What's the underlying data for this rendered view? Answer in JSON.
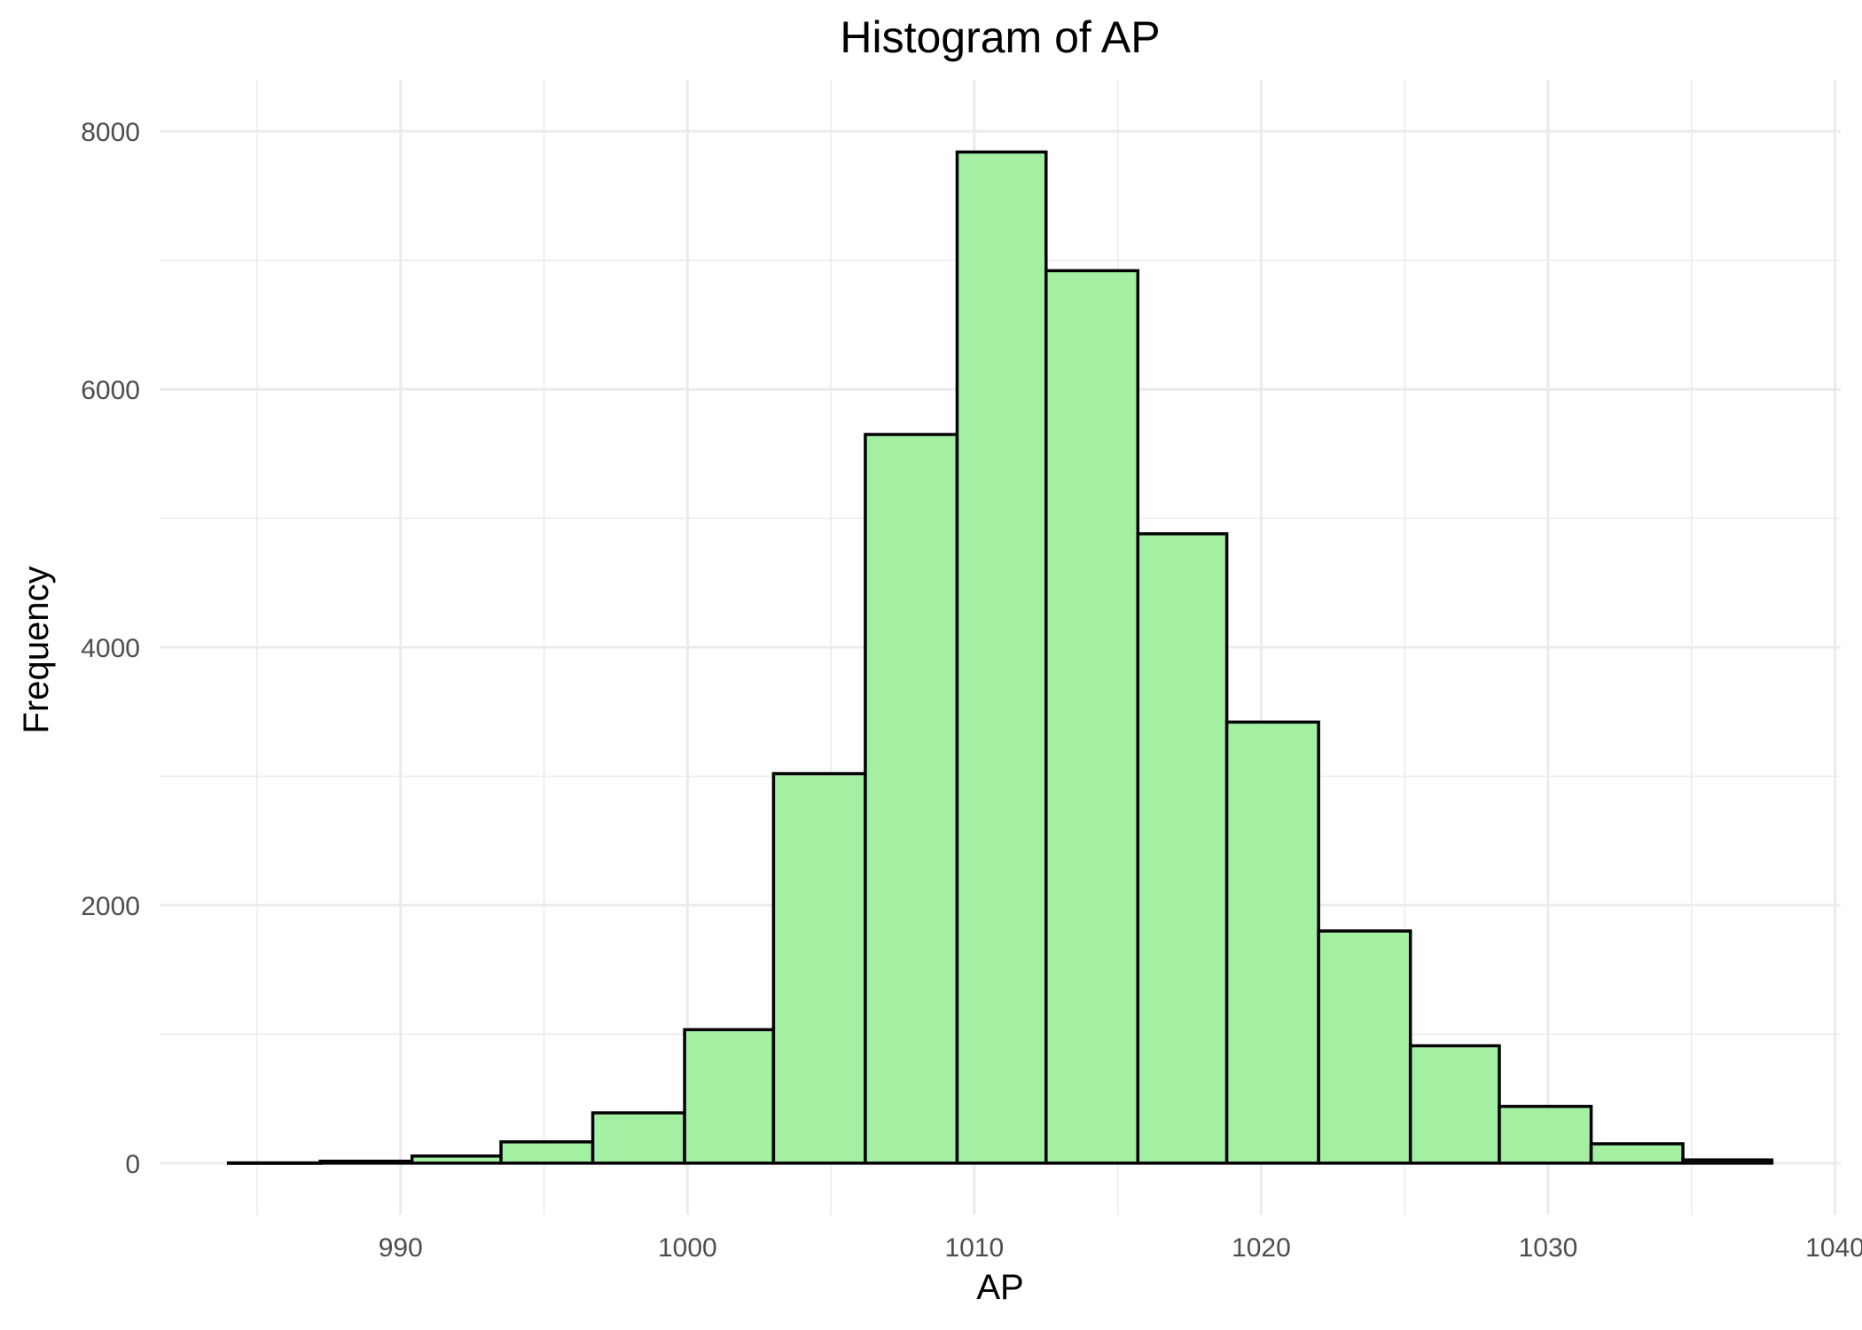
{
  "chart_data": {
    "type": "bar",
    "title": "Histogram of AP",
    "xlabel": "AP",
    "ylabel": "Frequency",
    "bar_fill": "#a3f0a3",
    "bar_outline": "#000000",
    "bin_width": 3.16,
    "bins": [
      {
        "start": 984.0,
        "end": 987.2,
        "count": 2
      },
      {
        "start": 987.2,
        "end": 990.4,
        "count": 15
      },
      {
        "start": 990.4,
        "end": 993.5,
        "count": 55
      },
      {
        "start": 993.5,
        "end": 996.7,
        "count": 165
      },
      {
        "start": 996.7,
        "end": 999.9,
        "count": 390
      },
      {
        "start": 999.9,
        "end": 1003.0,
        "count": 1035
      },
      {
        "start": 1003.0,
        "end": 1006.2,
        "count": 3020
      },
      {
        "start": 1006.2,
        "end": 1009.4,
        "count": 5650
      },
      {
        "start": 1009.4,
        "end": 1012.5,
        "count": 7840
      },
      {
        "start": 1012.5,
        "end": 1015.7,
        "count": 6920
      },
      {
        "start": 1015.7,
        "end": 1018.8,
        "count": 4880
      },
      {
        "start": 1018.8,
        "end": 1022.0,
        "count": 3420
      },
      {
        "start": 1022.0,
        "end": 1025.2,
        "count": 1800
      },
      {
        "start": 1025.2,
        "end": 1028.3,
        "count": 910
      },
      {
        "start": 1028.3,
        "end": 1031.5,
        "count": 440
      },
      {
        "start": 1031.5,
        "end": 1034.7,
        "count": 150
      },
      {
        "start": 1034.7,
        "end": 1037.8,
        "count": 25
      }
    ],
    "xlim": [
      981.6,
      1040.2
    ],
    "ylim": [
      -400,
      8400
    ],
    "x_ticks": [
      990,
      1000,
      1010,
      1020,
      1030,
      1040
    ],
    "x_tick_labels": [
      "990",
      "1000",
      "1010",
      "1020",
      "1030",
      "1040"
    ],
    "y_ticks": [
      0,
      2000,
      4000,
      6000,
      8000
    ],
    "y_tick_labels": [
      "0",
      "2000",
      "4000",
      "6000",
      "8000"
    ],
    "grid": true
  }
}
